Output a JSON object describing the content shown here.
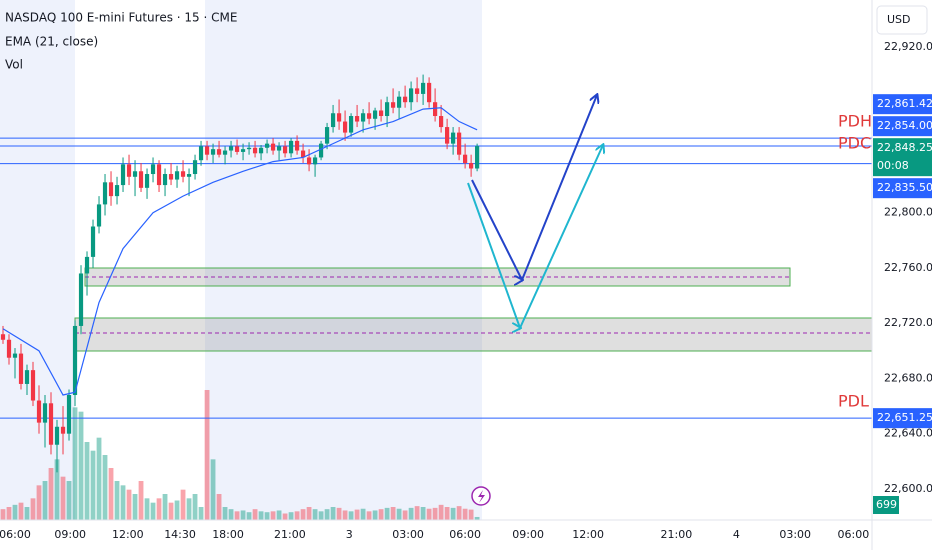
{
  "chart_data": {
    "type": "candlestick",
    "title": "NASDAQ 100 E-mini Futures · 15 · CME",
    "indicators": [
      "EMA (21, close)",
      "Vol"
    ],
    "currency": "USD",
    "xlim": [
      -0.5,
      144.8
    ],
    "xticks": [
      {
        "value": 2,
        "label": "06:00"
      },
      {
        "value": 11.2,
        "label": "09:00"
      },
      {
        "value": 20.8,
        "label": "12:00"
      },
      {
        "value": 29.5,
        "label": "14:30"
      },
      {
        "value": 37.5,
        "label": "18:00"
      },
      {
        "value": 47.8,
        "label": "21:00"
      },
      {
        "value": 57.7,
        "label": "3"
      },
      {
        "value": 67.5,
        "label": "03:00"
      },
      {
        "value": 77,
        "label": "06:00"
      },
      {
        "value": 87.5,
        "label": "09:00"
      },
      {
        "value": 97.5,
        "label": "12:00"
      },
      {
        "value": 112.2,
        "label": "21:00"
      },
      {
        "value": 122.2,
        "label": "4"
      },
      {
        "value": 132,
        "label": "03:00"
      },
      {
        "value": 141.7,
        "label": "06:00"
      }
    ],
    "ylim": [
      22577.5,
      22954
    ],
    "yticks": [
      {
        "value": 22920,
        "label": "22,920.00"
      },
      {
        "value": 22800,
        "label": "22,800.00"
      },
      {
        "value": 22760,
        "label": "22,760.00"
      },
      {
        "value": 22720,
        "label": "22,720.00"
      },
      {
        "value": 22680,
        "label": "22,680.00"
      },
      {
        "value": 22640,
        "label": "22,640.00"
      },
      {
        "value": 22600,
        "label": "22,600.00"
      }
    ],
    "up_color": "#089981",
    "down_color": "#f23645",
    "ohlc": [
      [
        22712,
        22718,
        22705,
        22708
      ],
      [
        22708,
        22712,
        22690,
        22695
      ],
      [
        22695,
        22702,
        22680,
        22698
      ],
      [
        22698,
        22705,
        22672,
        22676
      ],
      [
        22676,
        22690,
        22668,
        22686
      ],
      [
        22686,
        22692,
        22660,
        22664
      ],
      [
        22664,
        22675,
        22640,
        22648
      ],
      [
        22648,
        22668,
        22630,
        22662
      ],
      [
        22662,
        22670,
        22625,
        22632
      ],
      [
        22632,
        22650,
        22612,
        22645
      ],
      [
        22645,
        22660,
        22625,
        22640
      ],
      [
        22640,
        22672,
        22635,
        22668
      ],
      [
        22668,
        22722,
        22660,
        22718
      ],
      [
        22718,
        22762,
        22712,
        22756
      ],
      [
        22756,
        22772,
        22740,
        22768
      ],
      [
        22768,
        22795,
        22760,
        22790
      ],
      [
        22790,
        22812,
        22785,
        22806
      ],
      [
        22806,
        22828,
        22798,
        22822
      ],
      [
        22822,
        22830,
        22805,
        22812
      ],
      [
        22812,
        22826,
        22806,
        22820
      ],
      [
        22820,
        22840,
        22815,
        22835
      ],
      [
        22835,
        22842,
        22820,
        22826
      ],
      [
        22826,
        22838,
        22812,
        22830
      ],
      [
        22830,
        22836,
        22815,
        22818
      ],
      [
        22818,
        22832,
        22810,
        22828
      ],
      [
        22828,
        22840,
        22822,
        22835
      ],
      [
        22835,
        22838,
        22815,
        22820
      ],
      [
        22820,
        22832,
        22812,
        22828
      ],
      [
        22828,
        22836,
        22820,
        22824
      ],
      [
        22824,
        22834,
        22818,
        22830
      ],
      [
        22830,
        22838,
        22822,
        22826
      ],
      [
        22826,
        22832,
        22812,
        22828
      ],
      [
        22828,
        22842,
        22824,
        22838
      ],
      [
        22838,
        22852,
        22834,
        22848
      ],
      [
        22848,
        22852,
        22838,
        22842
      ],
      [
        22842,
        22850,
        22836,
        22846
      ],
      [
        22846,
        22852,
        22840,
        22842
      ],
      [
        22842,
        22848,
        22835,
        22845
      ],
      [
        22845,
        22852,
        22840,
        22848
      ],
      [
        22848,
        22853,
        22842,
        22844
      ],
      [
        22844,
        22850,
        22838,
        22846
      ],
      [
        22846,
        22851,
        22842,
        22847
      ],
      [
        22847,
        22852,
        22840,
        22843
      ],
      [
        22843,
        22849,
        22838,
        22847
      ],
      [
        22847,
        22853,
        22843,
        22850
      ],
      [
        22850,
        22854,
        22842,
        22845
      ],
      [
        22845,
        22851,
        22838,
        22848
      ],
      [
        22848,
        22852,
        22840,
        22843
      ],
      [
        22843,
        22854,
        22840,
        22852
      ],
      [
        22852,
        22856,
        22842,
        22845
      ],
      [
        22845,
        22850,
        22836,
        22840
      ],
      [
        22840,
        22846,
        22830,
        22835
      ],
      [
        22835,
        22842,
        22826,
        22840
      ],
      [
        22840,
        22852,
        22838,
        22850
      ],
      [
        22850,
        22865,
        22846,
        22862
      ],
      [
        22862,
        22878,
        22858,
        22872
      ],
      [
        22872,
        22882,
        22860,
        22866
      ],
      [
        22866,
        22874,
        22852,
        22858
      ],
      [
        22858,
        22872,
        22855,
        22870
      ],
      [
        22870,
        22878,
        22862,
        22866
      ],
      [
        22866,
        22875,
        22858,
        22872
      ],
      [
        22872,
        22880,
        22864,
        22868
      ],
      [
        22868,
        22876,
        22860,
        22874
      ],
      [
        22874,
        22882,
        22866,
        22870
      ],
      [
        22870,
        22884,
        22862,
        22880
      ],
      [
        22880,
        22890,
        22872,
        22876
      ],
      [
        22876,
        22888,
        22868,
        22884
      ],
      [
        22884,
        22892,
        22876,
        22880
      ],
      [
        22880,
        22895,
        22874,
        22890
      ],
      [
        22890,
        22898,
        22880,
        22886
      ],
      [
        22886,
        22900,
        22878,
        22894
      ],
      [
        22894,
        22898,
        22876,
        22880
      ],
      [
        22880,
        22890,
        22866,
        22870
      ],
      [
        22870,
        22878,
        22858,
        22862
      ],
      [
        22862,
        22868,
        22846,
        22850
      ],
      [
        22850,
        22862,
        22842,
        22858
      ],
      [
        22858,
        22862,
        22838,
        22842
      ],
      [
        22842,
        22850,
        22832,
        22836
      ],
      [
        22836,
        22842,
        22826,
        22832
      ],
      [
        22832,
        22850,
        22830,
        22848.25
      ]
    ],
    "vlim": [
      0,
      120000
    ],
    "volume": [
      2500,
      3000,
      3500,
      4000,
      3000,
      5000,
      8000,
      9000,
      12000,
      14000,
      10000,
      9000,
      26000,
      25000,
      18000,
      16000,
      19000,
      15000,
      12000,
      9000,
      8000,
      7000,
      6000,
      9000,
      5000,
      4000,
      5000,
      6000,
      4000,
      4500,
      7000,
      5000,
      6000,
      3000,
      30000,
      14000,
      6000,
      3000,
      2500,
      2000,
      2200,
      1800,
      2500,
      2000,
      1800,
      2000,
      2200,
      1500,
      1800,
      2000,
      2500,
      3000,
      2500,
      2000,
      2500,
      3000,
      2800,
      2200,
      2000,
      2400,
      2600,
      2000,
      2200,
      2500,
      2800,
      3000,
      2600,
      2200,
      2800,
      3200,
      3000,
      2600,
      2800,
      3500,
      3000,
      2800,
      3200,
      2600,
      2400,
      699
    ],
    "ema": {
      "color": "#2962ff",
      "x": [
        0,
        6,
        10,
        12,
        16,
        20,
        25,
        30,
        35,
        40,
        45,
        50,
        55,
        60,
        65,
        70,
        73,
        76,
        79
      ],
      "values": [
        22716,
        22700,
        22668,
        22670,
        22735,
        22774,
        22800,
        22812,
        22822,
        22830,
        22837,
        22840,
        22850,
        22860,
        22866,
        22875,
        22876,
        22866,
        22860
      ]
    },
    "lines": [
      {
        "value": 22854,
        "name": "PDH"
      },
      {
        "value": 22848.25,
        "name": "PDC"
      },
      {
        "value": 22835.5
      },
      {
        "value": 22651.25,
        "name": "PDL"
      }
    ],
    "price_labels": [
      {
        "value": 22861.42,
        "label": "22,861.42",
        "color": "#2962ff"
      },
      {
        "value": 22854,
        "label": "22,854.00",
        "color": "#2962ff"
      },
      {
        "value": 22848.25,
        "label": "22,848.25",
        "color": "#089981",
        "countdown": "00:08"
      },
      {
        "value": 22835.5,
        "label": "22,835.50",
        "color": "#2962ff"
      },
      {
        "value": 22651.25,
        "label": "22,651.25",
        "color": "#2962ff"
      }
    ]
  }
}
